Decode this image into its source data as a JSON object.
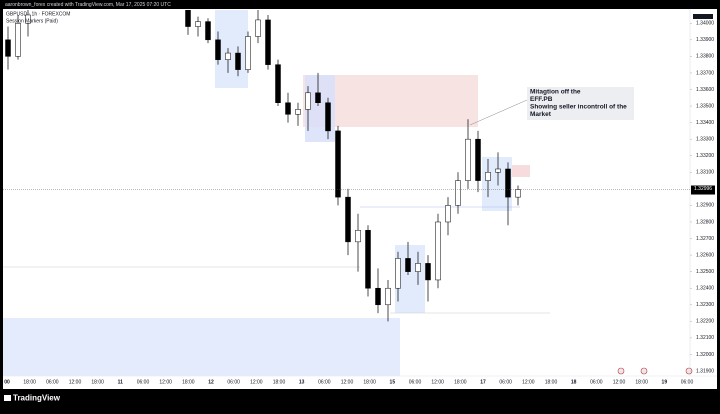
{
  "header": {
    "credit": "aaronbrown_forex created with TradingView.com, Mar 17, 2025 07:20 UTC",
    "footer_logo": "TradingView"
  },
  "chart_data": {
    "type": "candlestick",
    "symbol": "GBPUSD · 1h · FOREXCOM",
    "indicator": "Session Markers (Paid)",
    "annotation": [
      "Mitagtion off the",
      "EFF.PB",
      "Showing seller incontroll of the",
      "Market"
    ],
    "bull_color": "#ffffff",
    "bear_color": "#000000",
    "ylim": [
      1.3187,
      1.3408
    ],
    "yticks": [
      {
        "value": 1.34,
        "label": "1.34000"
      },
      {
        "value": 1.339,
        "label": "1.33900"
      },
      {
        "value": 1.338,
        "label": "1.33800"
      },
      {
        "value": 1.337,
        "label": "1.33700"
      },
      {
        "value": 1.336,
        "label": "1.33600"
      },
      {
        "value": 1.335,
        "label": "1.33500"
      },
      {
        "value": 1.334,
        "label": "1.33400"
      },
      {
        "value": 1.333,
        "label": "1.33300"
      },
      {
        "value": 1.332,
        "label": "1.33200"
      },
      {
        "value": 1.331,
        "label": "1.33100"
      },
      {
        "value": 1.329,
        "label": "1.32900"
      },
      {
        "value": 1.328,
        "label": "1.32800"
      },
      {
        "value": 1.327,
        "label": "1.32700"
      },
      {
        "value": 1.326,
        "label": "1.32600"
      },
      {
        "value": 1.325,
        "label": "1.32500"
      },
      {
        "value": 1.324,
        "label": "1.32400"
      },
      {
        "value": 1.323,
        "label": "1.32300"
      },
      {
        "value": 1.322,
        "label": "1.32200"
      },
      {
        "value": 1.321,
        "label": "1.32100"
      },
      {
        "value": 1.32,
        "label": "1.32000"
      },
      {
        "value": 1.319,
        "label": "1.31900"
      }
    ],
    "last_price": {
      "value": 1.32996,
      "label": "1.32996"
    },
    "categories": [
      "00",
      "18:00",
      "06:00",
      "12:00",
      "18:00",
      "11",
      "06:00",
      "12:00",
      "18:00",
      "12",
      "06:00",
      "12:00",
      "18:00",
      "13",
      "06:00",
      "12:00",
      "18:00",
      "15",
      "06:00",
      "12:00",
      "18:00",
      "17",
      "06:00",
      "12:00",
      "18:00",
      "18",
      "06:00",
      "12:00",
      "18:00",
      "19",
      "06:00"
    ],
    "candles": [
      {
        "open": 1.339,
        "high": 1.3398,
        "low": 1.3372,
        "close": 1.338
      },
      {
        "open": 1.338,
        "high": 1.3405,
        "low": 1.3378,
        "close": 1.34
      },
      {
        "open": 1.34,
        "high": 1.3408,
        "low": 1.3392,
        "close": 1.3405
      },
      null,
      null,
      null,
      null,
      null,
      null,
      null,
      null,
      null,
      null,
      null,
      null,
      null,
      null,
      null,
      {
        "open": 1.3408,
        "high": 1.3412,
        "low": 1.3393,
        "close": 1.3398
      },
      {
        "open": 1.3398,
        "high": 1.3404,
        "low": 1.3392,
        "close": 1.3401
      },
      {
        "open": 1.3401,
        "high": 1.3403,
        "low": 1.3388,
        "close": 1.339
      },
      {
        "open": 1.339,
        "high": 1.3395,
        "low": 1.3375,
        "close": 1.3378
      },
      {
        "open": 1.3378,
        "high": 1.3385,
        "low": 1.337,
        "close": 1.3382
      },
      {
        "open": 1.3382,
        "high": 1.3386,
        "low": 1.3368,
        "close": 1.3372
      },
      {
        "open": 1.3372,
        "high": 1.3395,
        "low": 1.337,
        "close": 1.3392
      },
      {
        "open": 1.3392,
        "high": 1.3408,
        "low": 1.3388,
        "close": 1.3402
      },
      {
        "open": 1.3402,
        "high": 1.3405,
        "low": 1.3372,
        "close": 1.3375
      },
      {
        "open": 1.3375,
        "high": 1.3378,
        "low": 1.335,
        "close": 1.3352
      },
      {
        "open": 1.3352,
        "high": 1.3358,
        "low": 1.334,
        "close": 1.3345
      },
      {
        "open": 1.3345,
        "high": 1.3352,
        "low": 1.3338,
        "close": 1.3348
      },
      {
        "open": 1.3348,
        "high": 1.3362,
        "low": 1.3335,
        "close": 1.3358
      },
      {
        "open": 1.3358,
        "high": 1.337,
        "low": 1.335,
        "close": 1.3352
      },
      {
        "open": 1.3352,
        "high": 1.3355,
        "low": 1.333,
        "close": 1.3335
      },
      {
        "open": 1.3335,
        "high": 1.3338,
        "low": 1.329,
        "close": 1.3295
      },
      {
        "open": 1.3295,
        "high": 1.33,
        "low": 1.326,
        "close": 1.3268
      },
      {
        "open": 1.3268,
        "high": 1.3285,
        "low": 1.325,
        "close": 1.3275
      },
      {
        "open": 1.3275,
        "high": 1.3278,
        "low": 1.3235,
        "close": 1.324
      },
      {
        "open": 1.324,
        "high": 1.3252,
        "low": 1.3225,
        "close": 1.323
      },
      {
        "open": 1.323,
        "high": 1.3245,
        "low": 1.322,
        "close": 1.324
      },
      {
        "open": 1.324,
        "high": 1.3262,
        "low": 1.3232,
        "close": 1.3258
      },
      {
        "open": 1.3258,
        "high": 1.3268,
        "low": 1.3248,
        "close": 1.325
      },
      {
        "open": 1.325,
        "high": 1.3262,
        "low": 1.3242,
        "close": 1.3255
      },
      {
        "open": 1.3255,
        "high": 1.326,
        "low": 1.3232,
        "close": 1.3245
      },
      {
        "open": 1.3245,
        "high": 1.3285,
        "low": 1.324,
        "close": 1.328
      },
      {
        "open": 1.328,
        "high": 1.3295,
        "low": 1.3272,
        "close": 1.329
      },
      {
        "open": 1.329,
        "high": 1.331,
        "low": 1.3285,
        "close": 1.3305
      },
      {
        "open": 1.3305,
        "high": 1.3342,
        "low": 1.33,
        "close": 1.333
      },
      {
        "open": 1.333,
        "high": 1.3335,
        "low": 1.3298,
        "close": 1.3305
      },
      {
        "open": 1.3305,
        "high": 1.3318,
        "low": 1.3295,
        "close": 1.331
      },
      {
        "open": 1.331,
        "high": 1.3322,
        "low": 1.3302,
        "close": 1.3312
      },
      {
        "open": 1.3312,
        "high": 1.3316,
        "low": 1.3278,
        "close": 1.3295
      },
      {
        "open": 1.3295,
        "high": 1.3302,
        "low": 1.329,
        "close": 1.32996
      }
    ]
  }
}
